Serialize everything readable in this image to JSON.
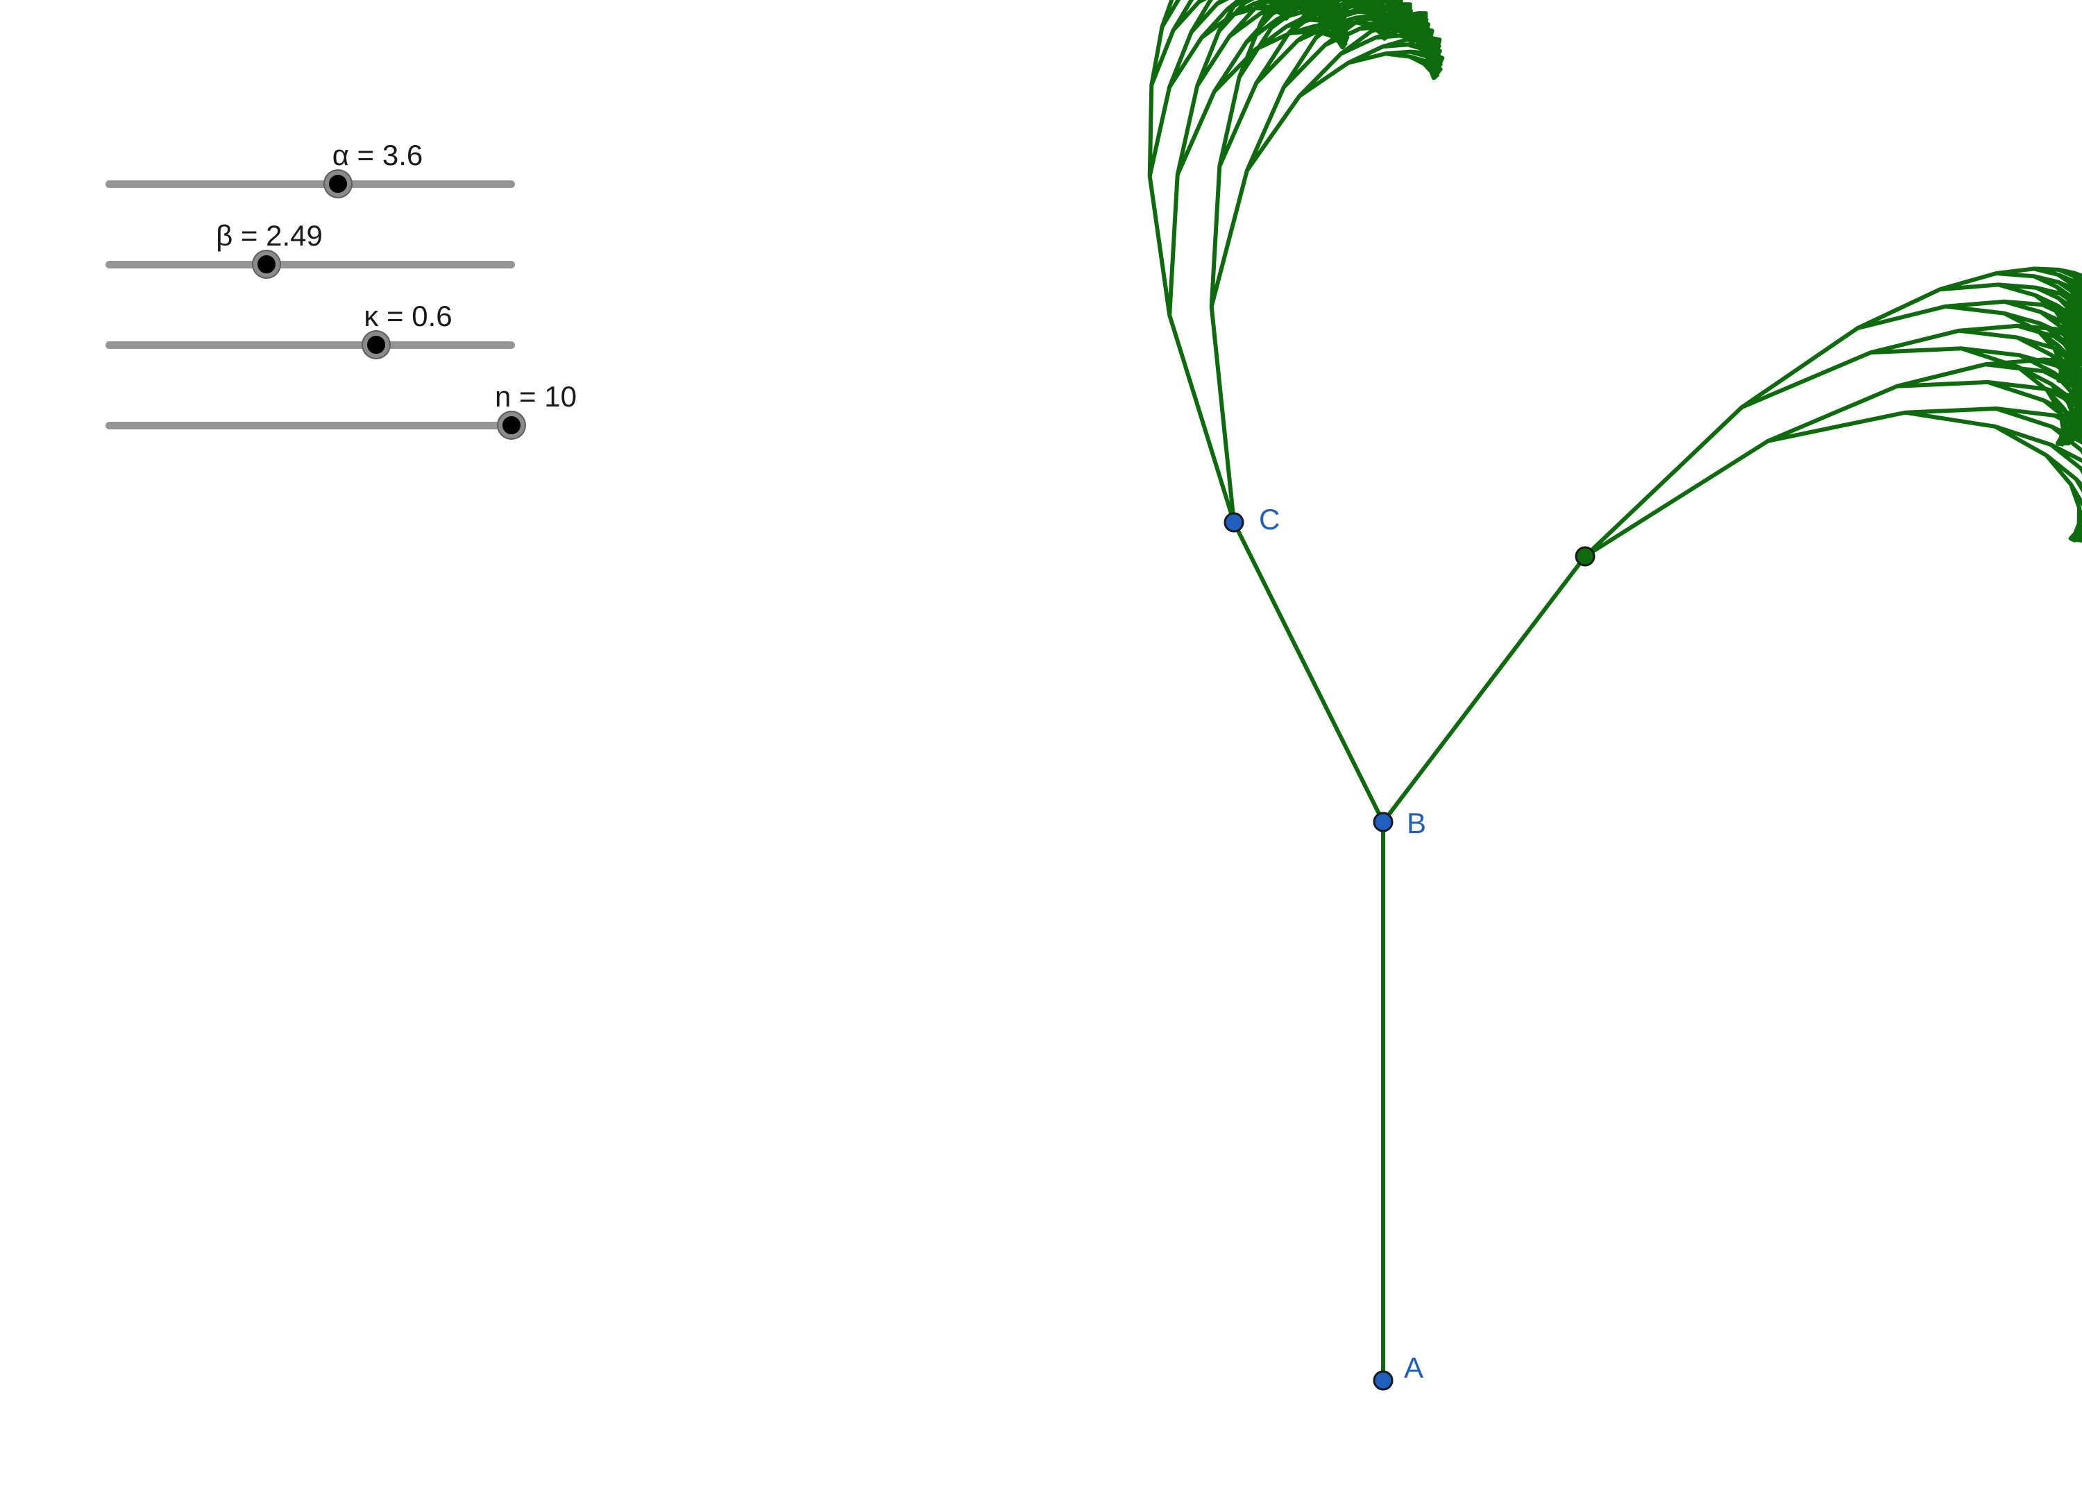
{
  "sliders": [
    {
      "name": "alpha",
      "label": "α = 3.6",
      "value": 3.6,
      "min": 0,
      "max": 6.2832
    },
    {
      "name": "beta",
      "label": "β = 2.49",
      "value": 2.49,
      "min": 0,
      "max": 6.2832
    },
    {
      "name": "kappa",
      "label": "κ = 0.6",
      "value": 0.6,
      "min": 0,
      "max": 0.9
    },
    {
      "name": "n",
      "label": "n = 10",
      "value": 10,
      "min": 0,
      "max": 10
    }
  ],
  "points": {
    "A": {
      "label": "A"
    },
    "B": {
      "label": "B"
    },
    "C": {
      "label": "C"
    }
  },
  "colors": {
    "tree": "#0d6b0d",
    "point_blue": "#1f5fbf",
    "point_green": "#0d6b0d",
    "slider_track": "#959595",
    "slider_knob": "#000000"
  }
}
